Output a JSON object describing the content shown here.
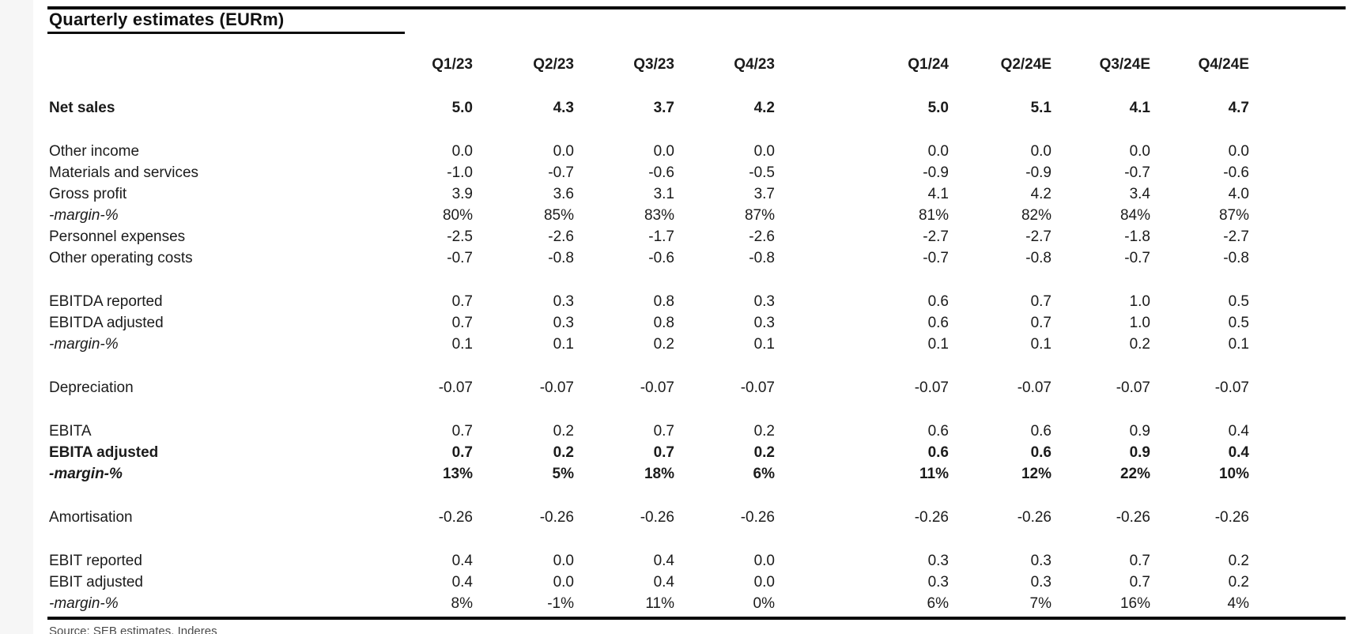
{
  "title": "Quarterly estimates (EURm)",
  "source_note": "Source: SEB estimates, Inderes",
  "colors": {
    "text": "#1b1b1b",
    "rule": "#0a0a0a",
    "background": "#ffffff"
  },
  "table": {
    "columns": [
      "Q1/23",
      "Q2/23",
      "Q3/23",
      "Q4/23",
      "Q1/24",
      "Q2/24E",
      "Q3/24E",
      "Q4/24E"
    ],
    "rows": [
      {
        "label": "Net sales",
        "style": "bold",
        "break_before": true,
        "values": [
          "5.0",
          "4.3",
          "3.7",
          "4.2",
          "5.0",
          "5.1",
          "4.1",
          "4.7"
        ]
      },
      {
        "label": "Other income",
        "style": "regular",
        "break_before": true,
        "values": [
          "0.0",
          "0.0",
          "0.0",
          "0.0",
          "0.0",
          "0.0",
          "0.0",
          "0.0"
        ]
      },
      {
        "label": "Materials and services",
        "style": "regular",
        "break_before": false,
        "values": [
          "-1.0",
          "-0.7",
          "-0.6",
          "-0.5",
          "-0.9",
          "-0.9",
          "-0.7",
          "-0.6"
        ]
      },
      {
        "label": "Gross profit",
        "style": "regular",
        "break_before": false,
        "values": [
          "3.9",
          "3.6",
          "3.1",
          "3.7",
          "4.1",
          "4.2",
          "3.4",
          "4.0"
        ]
      },
      {
        "label": "-margin-%",
        "style": "italic",
        "break_before": false,
        "values": [
          "80%",
          "85%",
          "83%",
          "87%",
          "81%",
          "82%",
          "84%",
          "87%"
        ]
      },
      {
        "label": "Personnel expenses",
        "style": "regular",
        "break_before": false,
        "values": [
          "-2.5",
          "-2.6",
          "-1.7",
          "-2.6",
          "-2.7",
          "-2.7",
          "-1.8",
          "-2.7"
        ]
      },
      {
        "label": "Other operating costs",
        "style": "regular",
        "break_before": false,
        "values": [
          "-0.7",
          "-0.8",
          "-0.6",
          "-0.8",
          "-0.7",
          "-0.8",
          "-0.7",
          "-0.8"
        ]
      },
      {
        "label": "EBITDA reported",
        "style": "regular",
        "break_before": true,
        "values": [
          "0.7",
          "0.3",
          "0.8",
          "0.3",
          "0.6",
          "0.7",
          "1.0",
          "0.5"
        ]
      },
      {
        "label": "EBITDA adjusted",
        "style": "regular",
        "break_before": false,
        "values": [
          "0.7",
          "0.3",
          "0.8",
          "0.3",
          "0.6",
          "0.7",
          "1.0",
          "0.5"
        ]
      },
      {
        "label": "-margin-%",
        "style": "italic",
        "break_before": false,
        "values": [
          "0.1",
          "0.1",
          "0.2",
          "0.1",
          "0.1",
          "0.1",
          "0.2",
          "0.1"
        ]
      },
      {
        "label": "Depreciation",
        "style": "regular",
        "break_before": true,
        "values": [
          "-0.07",
          "-0.07",
          "-0.07",
          "-0.07",
          "-0.07",
          "-0.07",
          "-0.07",
          "-0.07"
        ]
      },
      {
        "label": "EBITA",
        "style": "regular",
        "break_before": true,
        "values": [
          "0.7",
          "0.2",
          "0.7",
          "0.2",
          "0.6",
          "0.6",
          "0.9",
          "0.4"
        ]
      },
      {
        "label": "EBITA adjusted",
        "style": "bold",
        "break_before": false,
        "values": [
          "0.7",
          "0.2",
          "0.7",
          "0.2",
          "0.6",
          "0.6",
          "0.9",
          "0.4"
        ]
      },
      {
        "label": "-margin-%",
        "style": "bold-italic",
        "break_before": false,
        "values": [
          "13%",
          "5%",
          "18%",
          "6%",
          "11%",
          "12%",
          "22%",
          "10%"
        ]
      },
      {
        "label": "Amortisation",
        "style": "regular",
        "break_before": true,
        "values": [
          "-0.26",
          "-0.26",
          "-0.26",
          "-0.26",
          "-0.26",
          "-0.26",
          "-0.26",
          "-0.26"
        ]
      },
      {
        "label": "EBIT reported",
        "style": "regular",
        "break_before": true,
        "values": [
          "0.4",
          "0.0",
          "0.4",
          "0.0",
          "0.3",
          "0.3",
          "0.7",
          "0.2"
        ]
      },
      {
        "label": "EBIT adjusted",
        "style": "regular",
        "break_before": false,
        "values": [
          "0.4",
          "0.0",
          "0.4",
          "0.0",
          "0.3",
          "0.3",
          "0.7",
          "0.2"
        ]
      },
      {
        "label": "-margin-%",
        "style": "italic",
        "break_before": false,
        "values": [
          "8%",
          "-1%",
          "11%",
          "0%",
          "6%",
          "7%",
          "16%",
          "4%"
        ]
      }
    ]
  }
}
